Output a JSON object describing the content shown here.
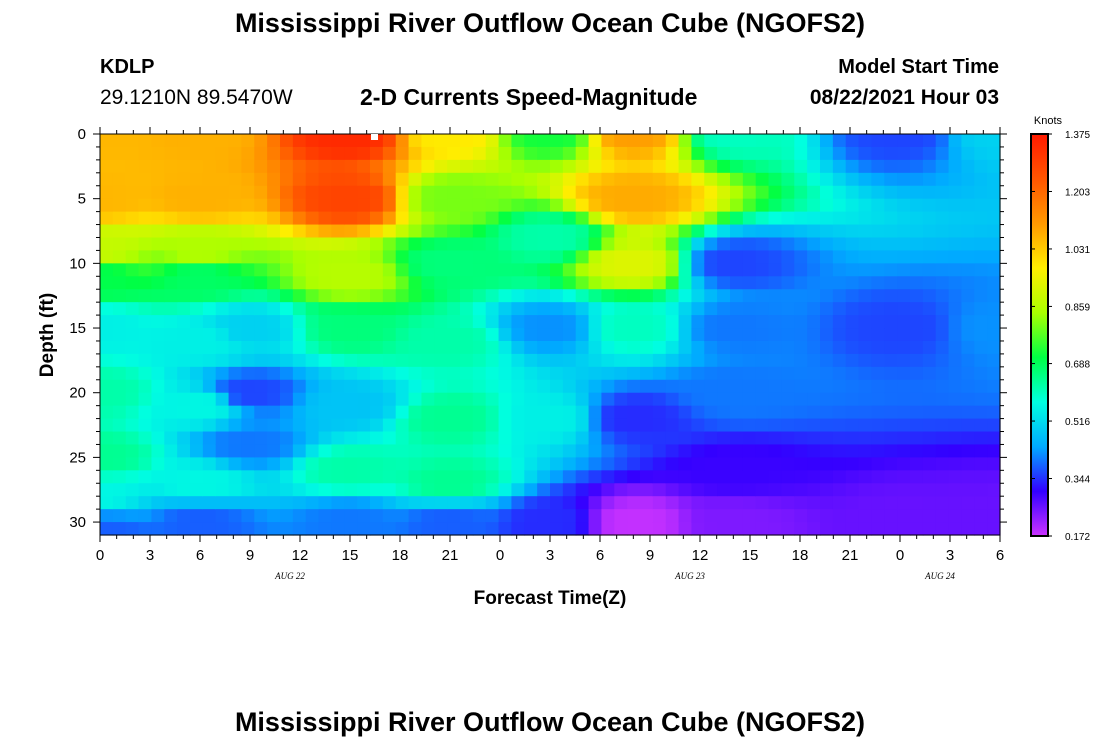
{
  "header": {
    "title": "Mississippi River Outflow Ocean Cube (NGOFS2)",
    "station_id": "KDLP",
    "station_coords": "29.1210N  89.5470W",
    "subtitle": "2-D Currents Speed-Magnitude",
    "model_start_label": "Model Start Time",
    "model_start_value": "08/22/2021 Hour 03"
  },
  "footer": {
    "title": "Mississippi River Outflow Ocean Cube (NGOFS2)"
  },
  "chart_data": {
    "type": "heatmap",
    "title": "2-D Currents Speed-Magnitude",
    "xlabel": "Forecast Time(Z)",
    "ylabel": "Depth (ft)",
    "x_range_hours": [
      0,
      54
    ],
    "y_range_ft": [
      0,
      31
    ],
    "y_inverted": true,
    "x_tick_labels": [
      "0",
      "3",
      "6",
      "9",
      "12",
      "15",
      "18",
      "21",
      "0",
      "3",
      "6",
      "9",
      "12",
      "15",
      "18",
      "21",
      "0",
      "3",
      "6"
    ],
    "y_tick_labels": [
      "0",
      "5",
      "10",
      "15",
      "20",
      "25",
      "30"
    ],
    "day_labels": [
      "AUG  22",
      "AUG  23",
      "AUG  24"
    ],
    "colorbar": {
      "unit": "Knots",
      "ticks": [
        "1.375",
        "1.203",
        "1.031",
        "0.859",
        "0.688",
        "0.516",
        "0.344",
        "0.172"
      ],
      "range": [
        0.172,
        1.375
      ],
      "colors": [
        "#cc33ff",
        "#3300ff",
        "#00aaff",
        "#00ffe0",
        "#00ff44",
        "#aaff00",
        "#ffee00",
        "#ff9900",
        "#ff5500",
        "#ff1a00"
      ]
    },
    "speed_knots": [
      {
        "x": 0,
        "depth": 0,
        "value": 1.06
      },
      {
        "x": 0,
        "depth": 5,
        "value": 1.06
      },
      {
        "x": 0,
        "depth": 9,
        "value": 0.88
      },
      {
        "x": 0,
        "depth": 11,
        "value": 0.7
      },
      {
        "x": 0,
        "depth": 15,
        "value": 0.55
      },
      {
        "x": 0,
        "depth": 20,
        "value": 0.62
      },
      {
        "x": 0,
        "depth": 25,
        "value": 0.64
      },
      {
        "x": 0,
        "depth": 28,
        "value": 0.56
      },
      {
        "x": 0,
        "depth": 30,
        "value": 0.42
      },
      {
        "x": 0,
        "depth": 31,
        "value": 0.34
      },
      {
        "x": 6,
        "depth": 0,
        "value": 1.07
      },
      {
        "x": 6,
        "depth": 5,
        "value": 1.07
      },
      {
        "x": 6,
        "depth": 9,
        "value": 0.85
      },
      {
        "x": 6,
        "depth": 11,
        "value": 0.68
      },
      {
        "x": 6,
        "depth": 16,
        "value": 0.55
      },
      {
        "x": 6,
        "depth": 21,
        "value": 0.56
      },
      {
        "x": 6,
        "depth": 27,
        "value": 0.56
      },
      {
        "x": 6,
        "depth": 30,
        "value": 0.38
      },
      {
        "x": 9,
        "depth": 15,
        "value": 0.5
      },
      {
        "x": 9,
        "depth": 20,
        "value": 0.36
      },
      {
        "x": 9,
        "depth": 24,
        "value": 0.4
      },
      {
        "x": 15,
        "depth": 0,
        "value": 1.34
      },
      {
        "x": 15,
        "depth": 5,
        "value": 1.28
      },
      {
        "x": 15,
        "depth": 11,
        "value": 0.86
      },
      {
        "x": 15,
        "depth": 15,
        "value": 0.66
      },
      {
        "x": 15,
        "depth": 21,
        "value": 0.48
      },
      {
        "x": 15,
        "depth": 26,
        "value": 0.62
      },
      {
        "x": 15,
        "depth": 30,
        "value": 0.4
      },
      {
        "x": 21,
        "depth": 0,
        "value": 0.98
      },
      {
        "x": 21,
        "depth": 5,
        "value": 0.8
      },
      {
        "x": 21,
        "depth": 10,
        "value": 0.66
      },
      {
        "x": 21,
        "depth": 16,
        "value": 0.62
      },
      {
        "x": 21,
        "depth": 22,
        "value": 0.64
      },
      {
        "x": 21,
        "depth": 27,
        "value": 0.64
      },
      {
        "x": 21,
        "depth": 30,
        "value": 0.38
      },
      {
        "x": 27,
        "depth": 0,
        "value": 0.72
      },
      {
        "x": 27,
        "depth": 8,
        "value": 0.62
      },
      {
        "x": 27,
        "depth": 15,
        "value": 0.42
      },
      {
        "x": 27,
        "depth": 22,
        "value": 0.55
      },
      {
        "x": 27,
        "depth": 30,
        "value": 0.34
      },
      {
        "x": 32,
        "depth": 0,
        "value": 1.1
      },
      {
        "x": 32,
        "depth": 5,
        "value": 1.08
      },
      {
        "x": 32,
        "depth": 10,
        "value": 0.92
      },
      {
        "x": 32,
        "depth": 15,
        "value": 0.6
      },
      {
        "x": 32,
        "depth": 22,
        "value": 0.34
      },
      {
        "x": 32,
        "depth": 30,
        "value": 0.18
      },
      {
        "x": 38,
        "depth": 0,
        "value": 0.6
      },
      {
        "x": 38,
        "depth": 10,
        "value": 0.36
      },
      {
        "x": 38,
        "depth": 15,
        "value": 0.4
      },
      {
        "x": 38,
        "depth": 20,
        "value": 0.4
      },
      {
        "x": 38,
        "depth": 26,
        "value": 0.3
      },
      {
        "x": 38,
        "depth": 30,
        "value": 0.24
      },
      {
        "x": 48,
        "depth": 0,
        "value": 0.36
      },
      {
        "x": 48,
        "depth": 15,
        "value": 0.36
      },
      {
        "x": 48,
        "depth": 30,
        "value": 0.26
      },
      {
        "x": 54,
        "depth": 0,
        "value": 0.5
      },
      {
        "x": 54,
        "depth": 15,
        "value": 0.42
      },
      {
        "x": 54,
        "depth": 30,
        "value": 0.26
      }
    ]
  }
}
